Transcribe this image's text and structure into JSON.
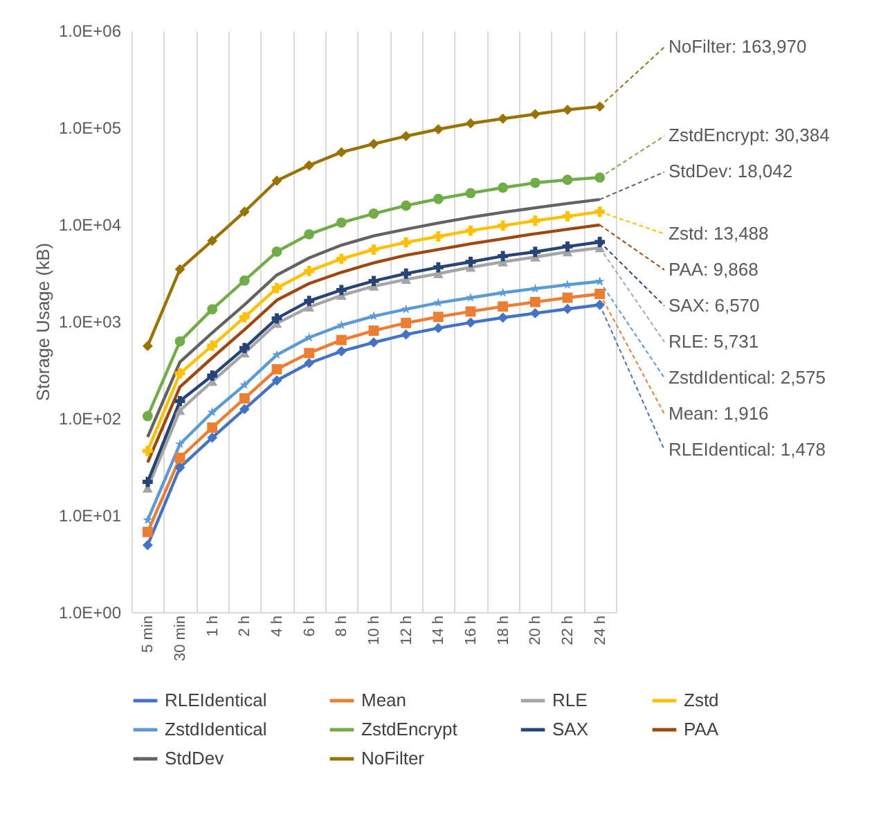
{
  "chart_data": {
    "type": "line",
    "ylabel": "Storage  Usage (kB)",
    "log": "y",
    "grid": "x",
    "legend": "bottom",
    "categories": [
      "5 min",
      "30 min",
      "1 h",
      "2 h",
      "4 h",
      "6 h",
      "8 h",
      "10 h",
      "12 h",
      "14 h",
      "16 h",
      "18 h",
      "20 h",
      "22 h",
      "24 h"
    ],
    "ylim": [
      1,
      1000000
    ],
    "yticks": [
      {
        "value": 1,
        "label": "1.0E+00"
      },
      {
        "value": 10,
        "label": "1.0E+01"
      },
      {
        "value": 100,
        "label": "1.0E+02"
      },
      {
        "value": 1000,
        "label": "1.0E+03"
      },
      {
        "value": 10000,
        "label": "1.0E+04"
      },
      {
        "value": 100000,
        "label": "1.0E+05"
      },
      {
        "value": 1000000,
        "label": "1.0E+06"
      }
    ],
    "series": [
      {
        "name": "RLEIdentical",
        "color": "#4472c4",
        "marker": "diamond",
        "values": [
          4.9,
          31,
          63,
          124,
          245,
          370,
          490,
          605,
          730,
          850,
          970,
          1090,
          1210,
          1340,
          1478
        ]
      },
      {
        "name": "Mean",
        "color": "#ed7d31",
        "marker": "square",
        "values": [
          6.7,
          39,
          80,
          160,
          320,
          470,
          640,
          800,
          960,
          1110,
          1260,
          1420,
          1580,
          1750,
          1916
        ]
      },
      {
        "name": "RLE",
        "color": "#a5a5a5",
        "marker": "triangle",
        "values": [
          19,
          120,
          240,
          470,
          950,
          1400,
          1850,
          2300,
          2700,
          3100,
          3600,
          4100,
          4600,
          5200,
          5731
        ]
      },
      {
        "name": "Zstd",
        "color": "#ffc000",
        "marker": "cross",
        "values": [
          46,
          290,
          560,
          1100,
          2200,
          3300,
          4400,
          5500,
          6500,
          7500,
          8600,
          9700,
          10900,
          12100,
          13488
        ]
      },
      {
        "name": "ZstdIdentical",
        "color": "#5b9bd5",
        "marker": "star",
        "values": [
          8.9,
          54,
          115,
          220,
          450,
          680,
          910,
          1130,
          1330,
          1550,
          1750,
          1970,
          2170,
          2380,
          2575
        ]
      },
      {
        "name": "ZstdEncrypt",
        "color": "#70ad47",
        "marker": "circle",
        "values": [
          105,
          620,
          1330,
          2630,
          5220,
          7900,
          10400,
          12900,
          15600,
          18300,
          21000,
          23900,
          26800,
          28800,
          30384
        ]
      },
      {
        "name": "SAX",
        "color": "#264478",
        "marker": "cross",
        "values": [
          22,
          150,
          275,
          530,
          1070,
          1620,
          2100,
          2600,
          3100,
          3600,
          4100,
          4700,
          5200,
          5900,
          6570
        ]
      },
      {
        "name": "PAA",
        "color": "#9e480e",
        "marker": "none",
        "values": [
          35,
          210,
          420,
          820,
          1650,
          2450,
          3200,
          4000,
          4800,
          5500,
          6300,
          7100,
          8000,
          8900,
          9868
        ]
      },
      {
        "name": "StdDev",
        "color": "#636363",
        "marker": "none",
        "values": [
          64,
          380,
          760,
          1480,
          3000,
          4500,
          6100,
          7600,
          8900,
          10300,
          11800,
          13300,
          14800,
          16400,
          18042
        ]
      },
      {
        "name": "NoFilter",
        "color": "#997300",
        "marker": "diamond",
        "values": [
          556,
          3440,
          6770,
          13500,
          28200,
          40600,
          55400,
          67600,
          81300,
          95600,
          110000,
          123000,
          137000,
          152000,
          163970
        ]
      }
    ],
    "annotations": [
      {
        "text": "NoFilter: 163,970",
        "x": "24 h",
        "y": 163970
      },
      {
        "text": "ZstdEncrypt: 30,384",
        "x": "24 h",
        "y": 30384
      },
      {
        "text": "StdDev: 18,042",
        "x": "24 h",
        "y": 18042
      },
      {
        "text": "Zstd:  13,488",
        "x": "24 h",
        "y": 13488
      },
      {
        "text": "PAA:  9,868",
        "x": "24 h",
        "y": 9868
      },
      {
        "text": "SAX: 6,570",
        "x": "24 h",
        "y": 6570
      },
      {
        "text": "RLE: 5,731",
        "x": "24 h",
        "y": 5731
      },
      {
        "text": "ZstdIdentical: 2,575",
        "x": "24 h",
        "y": 2575
      },
      {
        "text": "Mean: 1,916",
        "x": "24 h",
        "y": 1916
      },
      {
        "text": "RLEIdentical: 1,478",
        "x": "24 h",
        "y": 1478
      }
    ]
  }
}
